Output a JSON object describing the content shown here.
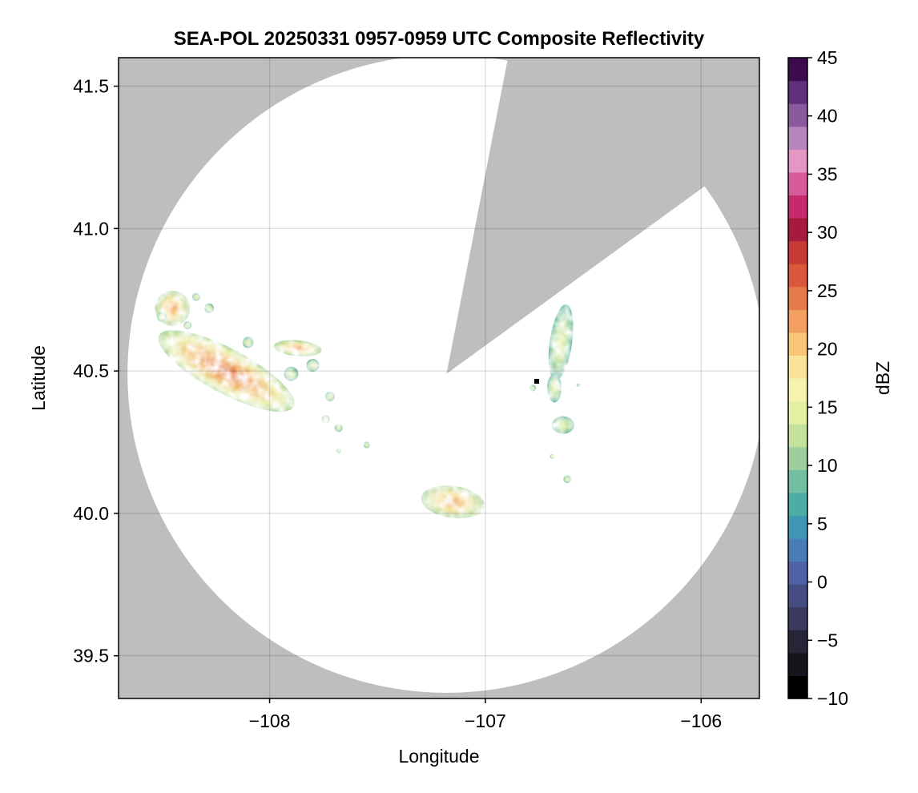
{
  "chart_data": {
    "type": "heatmap",
    "title": "SEA-POL 20250331 0957-0959 UTC Composite Reflectivity",
    "xlabel": "Longitude",
    "ylabel": "Latitude",
    "xlim": [
      -108.7,
      -105.73
    ],
    "ylim": [
      39.35,
      41.6
    ],
    "xticks": [
      -108,
      -107,
      -106
    ],
    "yticks": [
      39.5,
      40.0,
      40.5,
      41.0,
      41.5
    ],
    "xtick_labels": [
      "−108",
      "−107",
      "−106"
    ],
    "ytick_labels": [
      "39.5",
      "40.0",
      "40.5",
      "41.0",
      "41.5"
    ],
    "grid": true,
    "radar": {
      "center": [
        -107.18,
        40.49
      ],
      "range_deg_lat": 1.12,
      "blocked_sectors": [
        {
          "note_bearing_deg": [
            11,
            54
          ]
        }
      ],
      "coverage_color": "#ffffff",
      "outside_color": "#bebebe"
    },
    "echoes": [
      {
        "lon": -108.2,
        "lat": 40.5,
        "max_dbz": 26
      },
      {
        "lon": -107.15,
        "lat": 40.04,
        "max_dbz": 23
      },
      {
        "lon": -106.65,
        "lat": 40.6,
        "max_dbz": 17
      },
      {
        "lon": -106.64,
        "lat": 40.31,
        "max_dbz": 16
      },
      {
        "lon": -106.68,
        "lat": 40.44,
        "max_dbz": 12
      },
      {
        "lon": -107.87,
        "lat": 40.58,
        "max_dbz": 20
      },
      {
        "lon": -108.45,
        "lat": 40.72,
        "max_dbz": 20
      }
    ],
    "colorbar": {
      "label": "dBZ",
      "range": [
        -10,
        45
      ],
      "ticks": [
        -10,
        -5,
        0,
        5,
        10,
        15,
        20,
        25,
        30,
        35,
        40,
        45
      ],
      "tick_labels": [
        "−10",
        "−5",
        "0",
        "5",
        "10",
        "15",
        "20",
        "25",
        "30",
        "35",
        "40",
        "45"
      ],
      "step": 2.5,
      "colors": [
        "#000000",
        "#16151c",
        "#272638",
        "#393a5c",
        "#454c82",
        "#4f62a5",
        "#4a7cb6",
        "#3f97b4",
        "#4daca3",
        "#71bea0",
        "#9dcf9e",
        "#c4e29d",
        "#e4f1a3",
        "#f7f3af",
        "#fae39a",
        "#f9c678",
        "#f39f5f",
        "#e77a4b",
        "#db583c",
        "#c83a34",
        "#a71a3f",
        "#c42a6c",
        "#d85c9c",
        "#e596c4",
        "#b985be",
        "#8a5a9e",
        "#5e2f7a",
        "#3b0b4e"
      ]
    }
  }
}
